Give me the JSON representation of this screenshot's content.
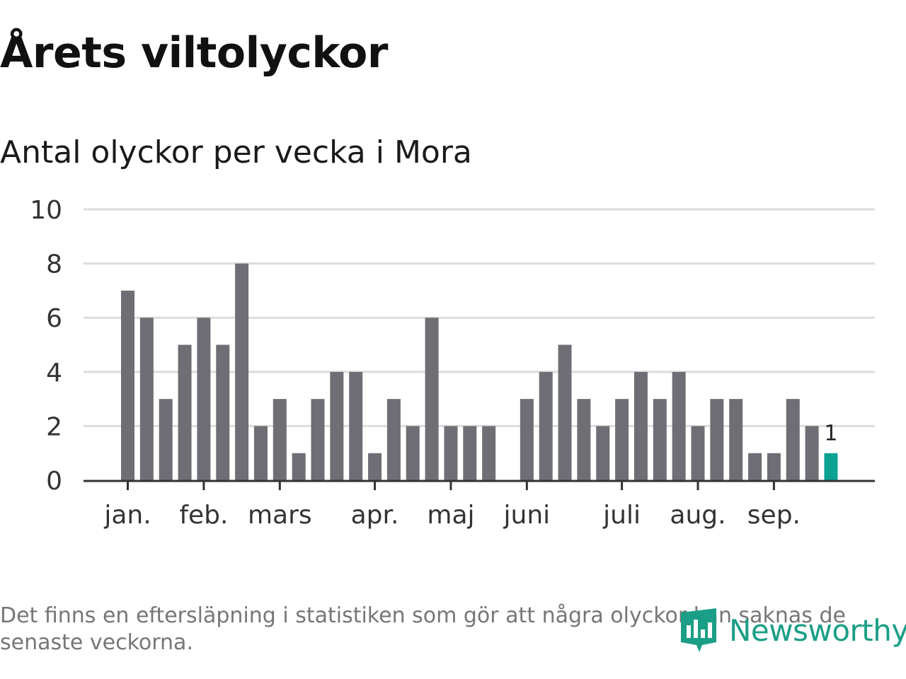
{
  "header": {
    "title": "Årets viltolyckor",
    "subtitle": "Antal olyckor per vecka i Mora"
  },
  "chart_data": {
    "type": "bar",
    "title": "Årets viltolyckor",
    "subtitle": "Antal olyckor per vecka i Mora",
    "xlabel": "",
    "ylabel": "",
    "ylim": [
      0,
      10
    ],
    "yticks": [
      0,
      2,
      4,
      6,
      8,
      10
    ],
    "grid": true,
    "month_labels": [
      {
        "label": "jan.",
        "week": 1
      },
      {
        "label": "feb.",
        "week": 5
      },
      {
        "label": "mars",
        "week": 9
      },
      {
        "label": "apr.",
        "week": 14
      },
      {
        "label": "maj",
        "week": 18
      },
      {
        "label": "juni",
        "week": 22
      },
      {
        "label": "juli",
        "week": 27
      },
      {
        "label": "aug.",
        "week": 31
      },
      {
        "label": "sep.",
        "week": 35
      }
    ],
    "values": [
      7,
      6,
      3,
      5,
      6,
      5,
      8,
      2,
      3,
      1,
      3,
      4,
      4,
      1,
      3,
      2,
      6,
      2,
      2,
      2,
      0,
      3,
      4,
      5,
      3,
      2,
      3,
      4,
      3,
      4,
      2,
      3,
      3,
      1,
      1,
      3,
      2,
      1
    ],
    "highlight_last": true,
    "last_value_label": "1",
    "colors": {
      "bar": "#6f6e74",
      "highlight": "#0ba293",
      "grid": "#dcdcdc",
      "axis": "#333333",
      "tick_text": "#333333"
    }
  },
  "footer": {
    "note": "Det finns en eftersläpning i statistiken som gör att några olyckor kan saknas de senaste veckorna.",
    "brand": "Newsworthy",
    "brand_icon": "newsworthy-logo-icon",
    "brand_color": "#1b9e86"
  }
}
